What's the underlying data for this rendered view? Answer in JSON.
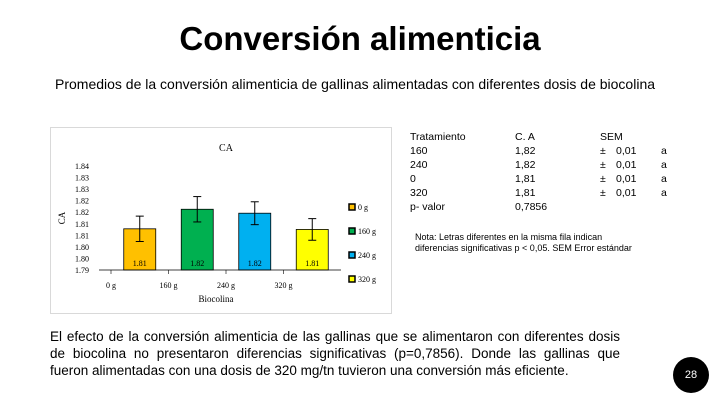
{
  "slide": {
    "title": "Conversión alimenticia",
    "subtitle": "Promedios de la conversión alimenticia de gallinas alimentadas con diferentes dosis de biocolina",
    "paragraph": "El efecto de la conversión alimenticia de las gallinas que se alimentaron con diferentes dosis de biocolina no presentaron diferencias significativas (p=0,7856). Donde las gallinas que fueron alimentadas con una dosis de 320 mg/tn tuvieron una conversión más eficiente.",
    "page_number": "28"
  },
  "table": {
    "headers": [
      "Tratamiento",
      "C. A",
      "SEM"
    ],
    "rows": [
      {
        "trat": "160",
        "ca": "1,82",
        "pm": "±",
        "sem": "0,01",
        "letter": "a"
      },
      {
        "trat": "240",
        "ca": "1,82",
        "pm": "±",
        "sem": "0,01",
        "letter": "a"
      },
      {
        "trat": "0",
        "ca": "1,81",
        "pm": "±",
        "sem": "0,01",
        "letter": "a"
      },
      {
        "trat": "320",
        "ca": "1,81",
        "pm": "±",
        "sem": "0,01",
        "letter": "a"
      },
      {
        "trat": "p- valor",
        "ca": "0,7856",
        "pm": "",
        "sem": "",
        "letter": ""
      }
    ]
  },
  "note": "Nota: Letras diferentes en la misma fila indican diferencias significativas p < 0,05. SEM Error estándar",
  "chart_data": {
    "type": "bar",
    "title": "CA",
    "ylabel": "CA",
    "xlabel": "Biocolina",
    "categories": [
      "0 g",
      "160 g",
      "240 g",
      "320 g"
    ],
    "values": [
      1.81,
      1.82,
      1.82,
      1.81
    ],
    "data_labels": [
      "1.81",
      "1.82",
      "1.82",
      "1.81"
    ],
    "error_upper": [
      1.8159,
      1.8253,
      1.8228,
      1.8147
    ],
    "error_lower": [
      1.8037,
      1.8131,
      1.8118,
      1.8043
    ],
    "bar_heights": [
      1.8098,
      1.8192,
      1.8173,
      1.8095
    ],
    "ylim": [
      1.79,
      1.84
    ],
    "yticks": [
      "1.84",
      "1.83",
      "1.83",
      "1.82",
      "1.82",
      "1.81",
      "1.81",
      "1.80",
      "1.80",
      "1.79"
    ],
    "colors": [
      "#FFC000",
      "#00B050",
      "#00B0F0",
      "#FFFF00"
    ],
    "legend": [
      "0 g",
      "160 g",
      "240 g",
      "320 g"
    ],
    "legend_position": "right",
    "grid": false
  }
}
